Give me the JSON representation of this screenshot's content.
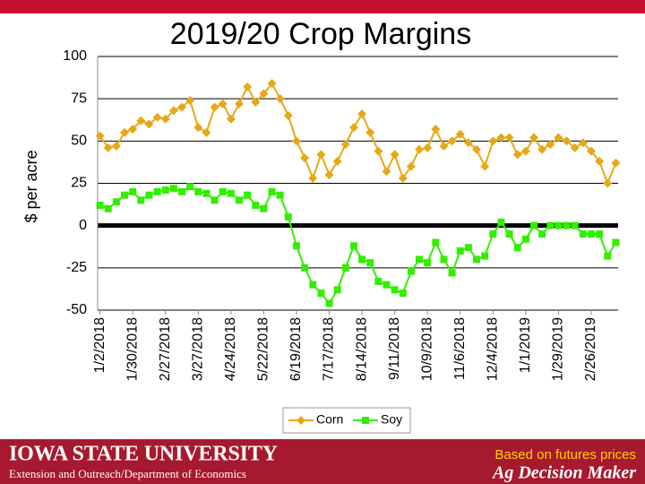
{
  "chart_data": {
    "type": "line",
    "title": "2019/20 Crop Margins",
    "y_label": "$ per acre",
    "x": [
      "1/2/2018",
      "1/9/2018",
      "1/16/2018",
      "1/23/2018",
      "1/30/2018",
      "2/6/2018",
      "2/13/2018",
      "2/20/2018",
      "2/27/2018",
      "3/6/2018",
      "3/13/2018",
      "3/20/2018",
      "3/27/2018",
      "4/3/2018",
      "4/10/2018",
      "4/17/2018",
      "4/24/2018",
      "5/1/2018",
      "5/8/2018",
      "5/15/2018",
      "5/22/2018",
      "5/29/2018",
      "6/5/2018",
      "6/12/2018",
      "6/19/2018",
      "6/26/2018",
      "7/3/2018",
      "7/10/2018",
      "7/17/2018",
      "7/24/2018",
      "7/31/2018",
      "8/7/2018",
      "8/14/2018",
      "8/21/2018",
      "8/28/2018",
      "9/4/2018",
      "9/11/2018",
      "9/18/2018",
      "9/25/2018",
      "10/2/2018",
      "10/9/2018",
      "10/16/2018",
      "10/23/2018",
      "10/30/2018",
      "11/6/2018",
      "11/13/2018",
      "11/20/2018",
      "11/27/2018",
      "12/4/2018",
      "12/11/2018",
      "12/18/2018",
      "12/25/2018",
      "1/1/2019",
      "1/8/2019",
      "1/15/2019",
      "1/22/2019",
      "1/29/2019",
      "2/5/2019",
      "2/12/2019",
      "2/19/2019",
      "2/26/2019",
      "3/5/2019",
      "3/12/2019",
      "3/19/2019"
    ],
    "series": [
      {
        "name": "Corn",
        "color": "#e6a817",
        "marker": "diamond",
        "values": [
          53,
          46,
          47,
          55,
          57,
          62,
          60,
          64,
          63,
          68,
          70,
          74,
          58,
          55,
          70,
          72,
          63,
          72,
          82,
          73,
          78,
          84,
          75,
          65,
          50,
          40,
          28,
          42,
          30,
          38,
          48,
          58,
          66,
          55,
          44,
          32,
          42,
          28,
          35,
          45,
          46,
          57,
          47,
          50,
          54,
          49,
          45,
          35,
          50,
          52,
          52,
          42,
          44,
          52,
          45,
          48,
          52,
          50,
          46,
          49,
          44,
          38,
          25,
          37
        ]
      },
      {
        "name": "Soy",
        "color": "#33ee00",
        "marker": "square",
        "values": [
          12,
          10,
          14,
          18,
          20,
          15,
          18,
          20,
          21,
          22,
          20,
          23,
          20,
          19,
          15,
          20,
          19,
          15,
          18,
          12,
          10,
          20,
          18,
          5,
          -12,
          -25,
          -35,
          -40,
          -46,
          -38,
          -25,
          -12,
          -20,
          -22,
          -33,
          -35,
          -38,
          -40,
          -27,
          -20,
          -22,
          -10,
          -20,
          -28,
          -15,
          -13,
          -20,
          -18,
          -5,
          2,
          -5,
          -13,
          -8,
          0,
          -5,
          0,
          0,
          0,
          0,
          -5,
          -5,
          -5,
          -18,
          -10
        ]
      }
    ],
    "xlim": [
      "12/31/2017",
      "3/21/2019"
    ],
    "xticks": [
      "1/2/2018",
      "1/30/2018",
      "2/27/2018",
      "3/27/2018",
      "4/24/2018",
      "5/22/2018",
      "6/19/2018",
      "7/17/2018",
      "8/14/2018",
      "9/11/2018",
      "10/9/2018",
      "11/6/2018",
      "12/4/2018",
      "1/1/2019",
      "1/29/2019",
      "2/26/2019"
    ],
    "ylim": [
      -50,
      100
    ],
    "yticks": [
      -50,
      -25,
      0,
      25,
      50,
      75,
      100
    ],
    "grid": true,
    "legend": "bottom"
  },
  "footer": {
    "university": "IOWA STATE UNIVERSITY",
    "department": "Extension and Outreach/Department of Economics",
    "note": "Based on futures prices",
    "brand": "Ag Decision Maker"
  }
}
